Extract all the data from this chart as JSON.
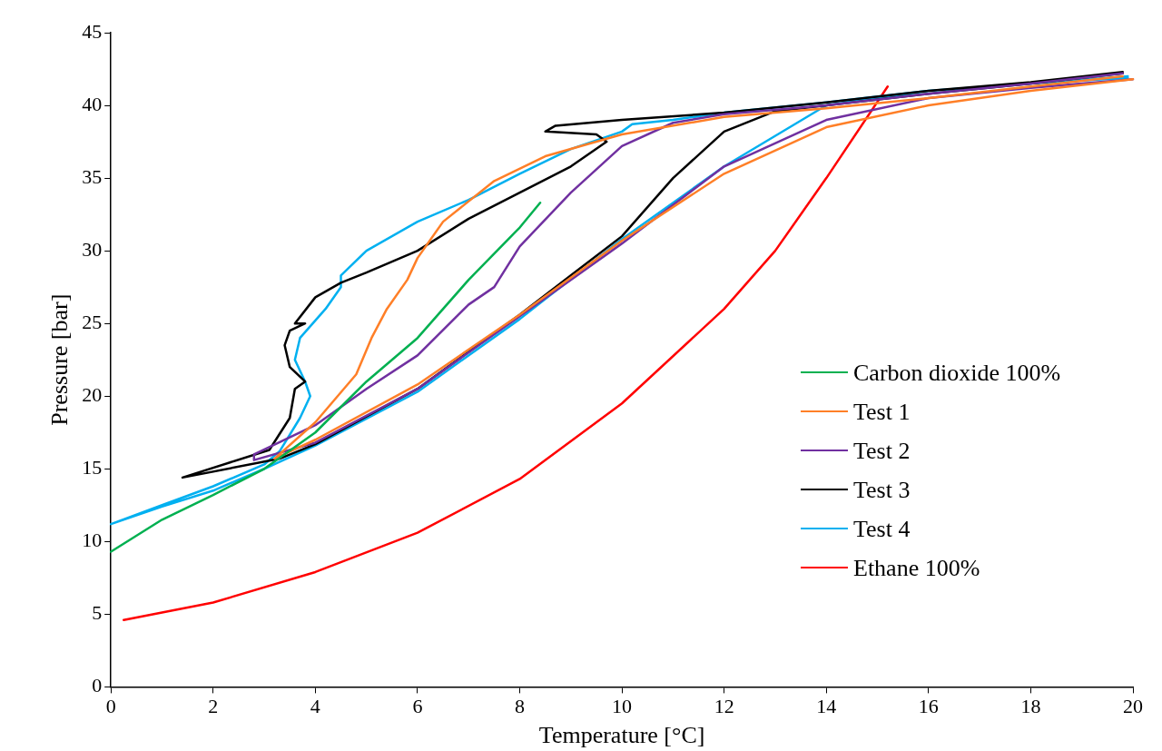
{
  "chart_data": {
    "type": "line",
    "xlabel": "Temperature [°C]",
    "ylabel": "Pressure [bar]",
    "xlim": [
      0,
      20
    ],
    "xticks": [
      0,
      2,
      4,
      6,
      8,
      10,
      12,
      14,
      16,
      18,
      20
    ],
    "ylim": [
      0,
      45
    ],
    "yticks": [
      0,
      5,
      10,
      15,
      20,
      25,
      30,
      35,
      40,
      45
    ],
    "grid": false,
    "legend": "right",
    "marker": "none",
    "line_style": "solid",
    "series": [
      {
        "name": "Carbon dioxide 100%",
        "color": "#00b050",
        "x": [
          0,
          1,
          2,
          3,
          4,
          5,
          6,
          7,
          8,
          8.4
        ],
        "values": [
          9.3,
          11.5,
          13.2,
          15,
          17.5,
          21,
          24,
          28,
          31.6,
          33.3
        ]
      },
      {
        "name": "Test 1",
        "color": "#ff7f27",
        "x": [
          20,
          18,
          16,
          14,
          12,
          10,
          8,
          6,
          4,
          3.2,
          4,
          4.8,
          5.1,
          5.4,
          5.8,
          6,
          6.5,
          7.5,
          8.5,
          10,
          12,
          14,
          16,
          18,
          19.8
        ],
        "values": [
          41.8,
          41,
          40,
          38.5,
          35.3,
          30.7,
          25.6,
          20.8,
          17,
          15.7,
          18.2,
          21.5,
          24,
          26,
          28,
          29.5,
          32,
          34.8,
          36.5,
          38,
          39.2,
          39.8,
          40.5,
          41.3,
          42
        ]
      },
      {
        "name": "Test 2",
        "color": "#7030a0",
        "x": [
          20,
          18,
          16,
          14,
          12,
          10,
          8,
          6,
          4,
          2.8,
          2.8,
          4,
          5,
          6,
          7,
          7.5,
          8,
          9,
          10,
          11,
          12,
          14,
          16,
          18,
          19.8
        ],
        "values": [
          41.8,
          41.2,
          40.5,
          39,
          35.8,
          30.5,
          25.5,
          20.5,
          16.8,
          15.6,
          16,
          18,
          20.5,
          22.8,
          26.3,
          27.5,
          30.3,
          34,
          37.2,
          38.8,
          39.4,
          40,
          40.8,
          41.5,
          42.2
        ]
      },
      {
        "name": "Test 3",
        "color": "#000000",
        "x": [
          19.8,
          18,
          16,
          14,
          13,
          12,
          11,
          10,
          9,
          8,
          6,
          4,
          3.3,
          1.4,
          3.1,
          3.5,
          3.6,
          3.8,
          3.5,
          3.4,
          3.5,
          3.8,
          3.6,
          4,
          4.5,
          5,
          6,
          7,
          8,
          9,
          9.7,
          9.5,
          8.5,
          8.7,
          10,
          12,
          14,
          16,
          18,
          19.8
        ],
        "values": [
          42.2,
          41.5,
          40.8,
          40,
          39.6,
          38.2,
          35,
          31,
          28.3,
          25.6,
          20.5,
          16.7,
          15.7,
          14.4,
          16.3,
          18.5,
          20.5,
          21,
          22,
          23.5,
          24.5,
          25,
          25,
          26.8,
          27.8,
          28.5,
          30,
          32.2,
          34,
          35.8,
          37.5,
          38,
          38.2,
          38.6,
          39,
          39.5,
          40.2,
          41,
          41.6,
          42.3
        ]
      },
      {
        "name": "Test 4",
        "color": "#00b0f0",
        "x": [
          19.9,
          18,
          16,
          14,
          12,
          10,
          8,
          6,
          4,
          3,
          2,
          1,
          0,
          1,
          2,
          3,
          3.3,
          3.7,
          3.9,
          3.8,
          3.6,
          3.7,
          4.2,
          4.5,
          4.5,
          5,
          6,
          7,
          8,
          9,
          10,
          10.2,
          11,
          12,
          14,
          16,
          18,
          19.9
        ],
        "values": [
          42,
          41.5,
          41,
          40,
          35.8,
          30.8,
          25.3,
          20.3,
          16.6,
          15,
          13.5,
          12.4,
          11.2,
          12.5,
          13.8,
          15.3,
          16.2,
          18.5,
          20,
          21,
          22.5,
          24,
          26,
          27.5,
          28.3,
          30,
          32,
          33.5,
          35.3,
          37,
          38.2,
          38.7,
          39,
          39.5,
          40.2,
          41,
          41.5,
          41.9
        ]
      },
      {
        "name": "Ethane 100%",
        "color": "#ff0000",
        "x": [
          0.25,
          2,
          4,
          6,
          8,
          10,
          12,
          13,
          14,
          15.2
        ],
        "values": [
          4.6,
          5.8,
          7.9,
          10.6,
          14.3,
          19.5,
          26,
          30,
          35,
          41.3
        ]
      }
    ]
  }
}
